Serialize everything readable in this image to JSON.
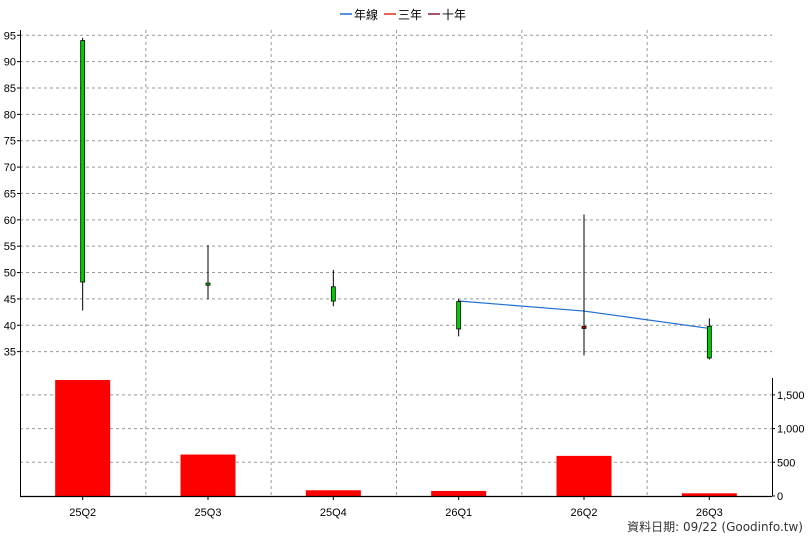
{
  "chart_data": {
    "type": "candlestick",
    "legend": {
      "placement": "top-center",
      "items": [
        {
          "label": "年線",
          "color": "#1f6fd1"
        },
        {
          "label": "三年",
          "color": "#e0301e"
        },
        {
          "label": "十年",
          "color": "#8b1a4a"
        }
      ]
    },
    "categories": [
      "25Q2",
      "25Q3",
      "25Q4",
      "26Q1",
      "26Q2",
      "26Q3"
    ],
    "price_axis": {
      "ylim": [
        30,
        96
      ],
      "ticks": [
        35,
        40,
        45,
        50,
        55,
        60,
        65,
        70,
        75,
        80,
        85,
        90,
        95
      ],
      "placement": "left"
    },
    "volume_axis": {
      "ylim": [
        0,
        1750
      ],
      "ticks": [
        0,
        500,
        1000,
        1500
      ],
      "tick_labels": [
        "0",
        "500",
        "1,000",
        "1,500"
      ],
      "placement": "right"
    },
    "candles": [
      {
        "category": "25Q2",
        "open": 48.2,
        "high": 94.5,
        "low": 42.8,
        "close": 94.0,
        "color": "#00cc00"
      },
      {
        "category": "25Q3",
        "open": 47.6,
        "high": 55.2,
        "low": 44.9,
        "close": 48.0,
        "color": "#00cc00"
      },
      {
        "category": "25Q4",
        "open": 44.6,
        "high": 50.5,
        "low": 43.6,
        "close": 47.3,
        "color": "#00cc00"
      },
      {
        "category": "26Q1",
        "open": 39.3,
        "high": 45.0,
        "low": 37.9,
        "close": 44.5,
        "color": "#00cc00"
      },
      {
        "category": "26Q2",
        "open": 39.8,
        "high": 61.0,
        "low": 34.3,
        "close": 39.4,
        "color": "#cc0000"
      },
      {
        "category": "26Q3",
        "open": 33.8,
        "high": 41.3,
        "low": 33.5,
        "close": 39.8,
        "color": "#00cc00"
      }
    ],
    "volume": {
      "color": "#ff0000",
      "values": [
        1720,
        615,
        85,
        75,
        595,
        40
      ]
    },
    "series": [
      {
        "name": "年線",
        "color": "#1f6fd1",
        "points": [
          {
            "category": "26Q1",
            "value": 44.6
          },
          {
            "category": "26Q2",
            "value": 42.7
          },
          {
            "category": "26Q3",
            "value": 39.4
          }
        ]
      }
    ],
    "grid": true
  },
  "footer": {
    "text": "資料日期: 09/22  (Goodinfo.tw)"
  }
}
